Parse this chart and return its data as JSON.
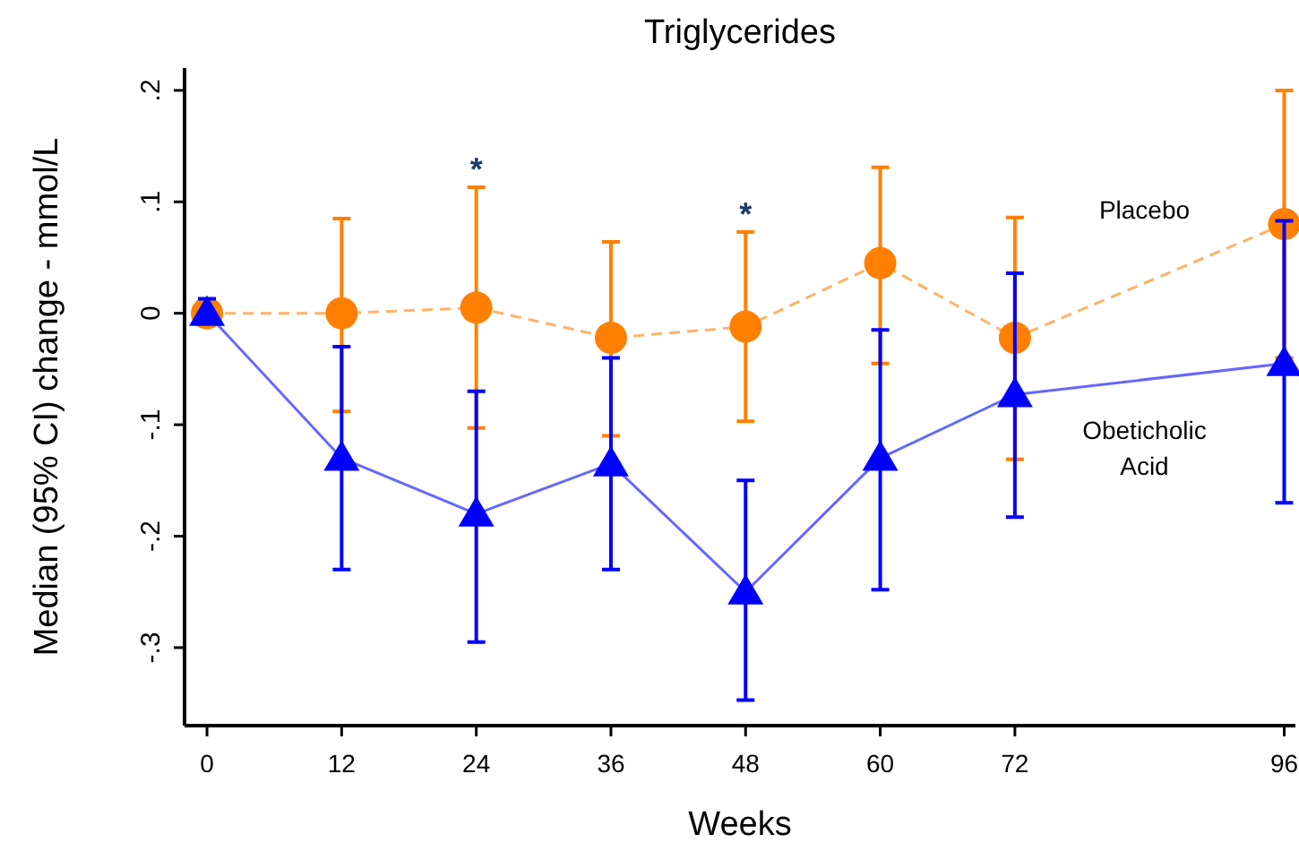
{
  "chart_data": {
    "type": "line",
    "title": "Triglycerides",
    "xlabel": "Weeks",
    "ylabel": "Median (95% CI) change - mmol/L",
    "x": [
      0,
      12,
      24,
      36,
      48,
      60,
      72,
      96
    ],
    "xlim": [
      -2,
      97
    ],
    "xticks": [
      0,
      12,
      24,
      36,
      48,
      60,
      72,
      96
    ],
    "ylim": [
      -0.37,
      0.22
    ],
    "yticks": [
      {
        "value": -0.3,
        "label": "-.3"
      },
      {
        "value": -0.2,
        "label": "-.2"
      },
      {
        "value": -0.1,
        "label": "-.1"
      },
      {
        "value": 0,
        "label": "0"
      },
      {
        "value": 0.1,
        "label": ".1"
      },
      {
        "value": 0.2,
        "label": ".2"
      }
    ],
    "grid": false,
    "series": [
      {
        "name": "Placebo",
        "color": "#ff8000",
        "marker": "circle",
        "line_style": "dashed",
        "values": [
          0,
          0,
          0.005,
          -0.022,
          -0.012,
          0.045,
          -0.022,
          0.08
        ],
        "errors": [
          null,
          [
            -0.088,
            0.085
          ],
          [
            -0.103,
            0.113
          ],
          [
            -0.11,
            0.064
          ],
          [
            -0.097,
            0.073
          ],
          [
            -0.045,
            0.131
          ],
          [
            -0.131,
            0.086
          ],
          [
            -0.04,
            0.2
          ]
        ]
      },
      {
        "name": "Obeticholic Acid",
        "color": "#0000ff",
        "marker": "triangle",
        "line_style": "solid",
        "values": [
          0,
          -0.13,
          -0.18,
          -0.135,
          -0.25,
          -0.13,
          -0.073,
          -0.045
        ],
        "errors": [
          [
            0,
            0.013
          ],
          [
            -0.23,
            -0.03
          ],
          [
            -0.295,
            -0.07
          ],
          [
            -0.23,
            -0.04
          ],
          [
            -0.347,
            -0.15
          ],
          [
            -0.248,
            -0.015
          ],
          [
            -0.183,
            0.036
          ],
          [
            -0.17,
            0.083
          ]
        ]
      }
    ],
    "annotations": [
      {
        "text": "*",
        "x": 24,
        "y": 0.113
      },
      {
        "text": "*",
        "x": 48,
        "y": 0.073
      }
    ]
  }
}
